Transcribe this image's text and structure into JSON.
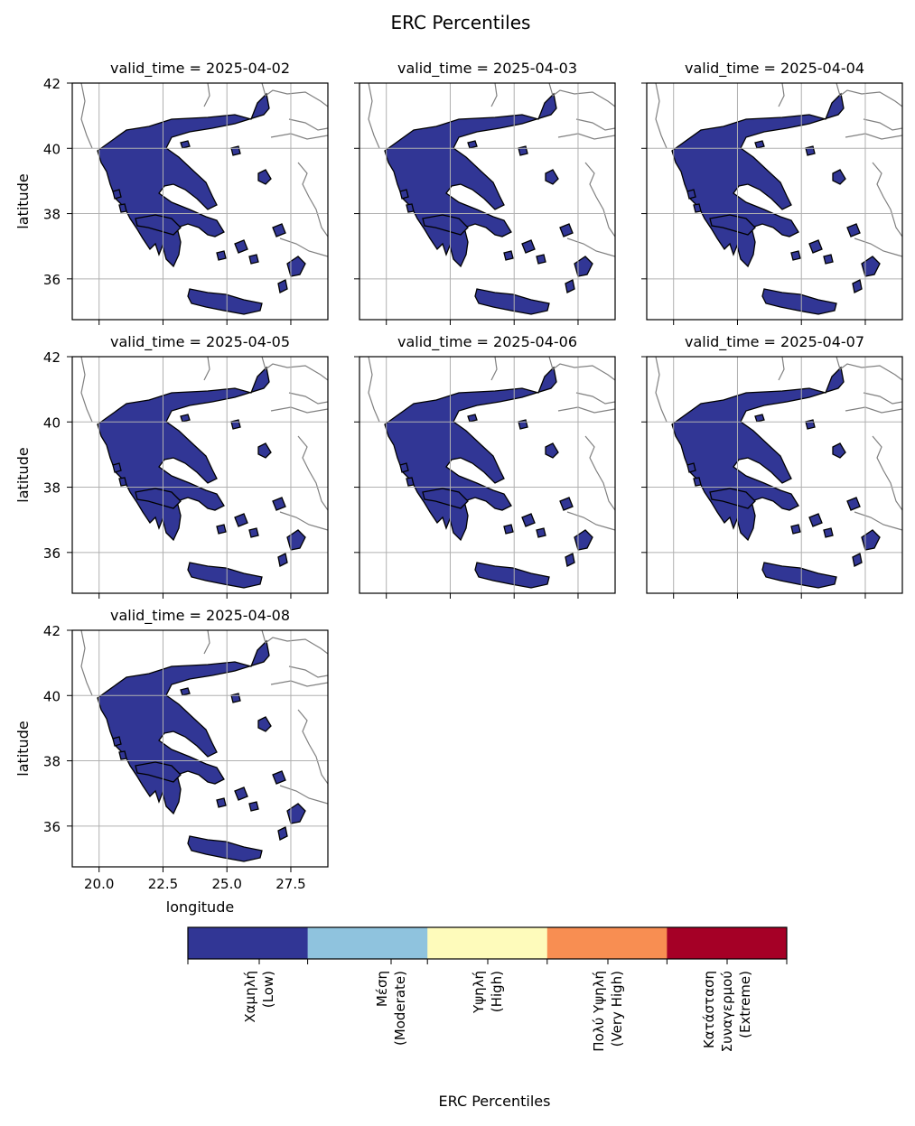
{
  "figure": {
    "title": "ERC Percentiles",
    "xlabel": "longitude",
    "ylabel": "latitude"
  },
  "axes": {
    "xlim": [
      18.95,
      28.95
    ],
    "ylim": [
      34.75,
      42.0
    ],
    "xticks": [
      20.0,
      22.5,
      25.0,
      27.5
    ],
    "xtick_labels": [
      "20.0",
      "22.5",
      "25.0",
      "27.5"
    ],
    "yticks": [
      36,
      38,
      40,
      42
    ],
    "ytick_labels": [
      "36",
      "38",
      "40",
      "42"
    ],
    "grid": true
  },
  "panels": [
    {
      "title": "valid_time = 2025-04-02",
      "category": "Χαμηλή (Low)"
    },
    {
      "title": "valid_time = 2025-04-03",
      "category": "Χαμηλή (Low)"
    },
    {
      "title": "valid_time = 2025-04-04",
      "category": "Χαμηλή (Low)"
    },
    {
      "title": "valid_time = 2025-04-05",
      "category": "Χαμηλή (Low)"
    },
    {
      "title": "valid_time = 2025-04-06",
      "category": "Χαμηλή (Low)"
    },
    {
      "title": "valid_time = 2025-04-07",
      "category": "Χαμηλή (Low)"
    },
    {
      "title": "valid_time = 2025-04-08",
      "category": "Χαμηλή (Low)"
    }
  ],
  "colorbar": {
    "label": "ERC Percentiles",
    "categories": [
      {
        "lines": [
          "Χαμηλή",
          "(Low)"
        ],
        "color": "#313695"
      },
      {
        "lines": [
          "Μέση",
          "(Moderate)"
        ],
        "color": "#8fc3de"
      },
      {
        "lines": [
          "Υψηλή",
          "(High)"
        ],
        "color": "#fefbbb"
      },
      {
        "lines": [
          "Πολύ Υψηλή",
          "(Very High)"
        ],
        "color": "#f88e52"
      },
      {
        "lines": [
          "Κατάσταση",
          "Συναγερμού",
          "(Extreme)"
        ],
        "color": "#a50026"
      }
    ]
  },
  "colors": {
    "land_fill": "#313695",
    "borders": "#808080",
    "grid": "#b0b0b0"
  }
}
